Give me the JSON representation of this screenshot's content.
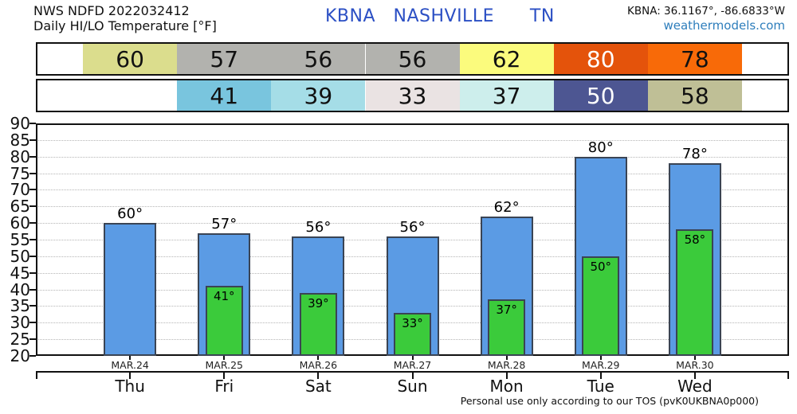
{
  "header": {
    "model_line": "NWS NDFD 2022032412",
    "product_line": "Daily HI/LO Temperature [°F]",
    "station_title": "KBNA   NASHVILLE      TN",
    "coords": "KBNA: 36.1167°, -86.6833°W",
    "site": "weathermodels.com"
  },
  "footer": {
    "tos": "Personal use only according to our TOS (pvK0UKBNA0p000)"
  },
  "chart_data": {
    "type": "bar",
    "title": "Daily HI/LO Temperature [°F]",
    "station": "KBNA NASHVILLE TN",
    "categories_date": [
      "MAR.24",
      "MAR.25",
      "MAR.26",
      "MAR.27",
      "MAR.28",
      "MAR.29",
      "MAR.30"
    ],
    "categories_day": [
      "Thu",
      "Fri",
      "Sat",
      "Sun",
      "Mon",
      "Tue",
      "Wed"
    ],
    "series": [
      {
        "name": "daily-high",
        "values": [
          60,
          57,
          56,
          56,
          62,
          80,
          78
        ],
        "bar_fill": "#5b9be4",
        "bar_border": "#3a4454",
        "strip_cell_colors": [
          "#dbdd8d",
          "#b2b2ae",
          "#b2b2ae",
          "#b2b2ae",
          "#fbfb7d",
          "#e4530b",
          "#f86a08"
        ],
        "strip_text_colors": [
          "#111111",
          "#111111",
          "#111111",
          "#111111",
          "#111111",
          "#ffffff",
          "#111111"
        ]
      },
      {
        "name": "daily-low",
        "values": [
          null,
          41,
          39,
          33,
          37,
          50,
          58
        ],
        "bar_fill": "#3bcb3b",
        "bar_border": "#3a4454",
        "strip_cell_colors": [
          null,
          "#79c5de",
          "#a5dde7",
          "#eae3e3",
          "#cdeeec",
          "#4d5692",
          "#bfbf96"
        ],
        "strip_text_colors": [
          null,
          "#111111",
          "#111111",
          "#111111",
          "#111111",
          "#ffffff",
          "#111111"
        ]
      }
    ],
    "ylim": [
      20,
      90
    ],
    "ytick_step": 5,
    "degree_suffix": "°",
    "grid": "dotted horizontal, every 5°F",
    "legend": "none"
  }
}
